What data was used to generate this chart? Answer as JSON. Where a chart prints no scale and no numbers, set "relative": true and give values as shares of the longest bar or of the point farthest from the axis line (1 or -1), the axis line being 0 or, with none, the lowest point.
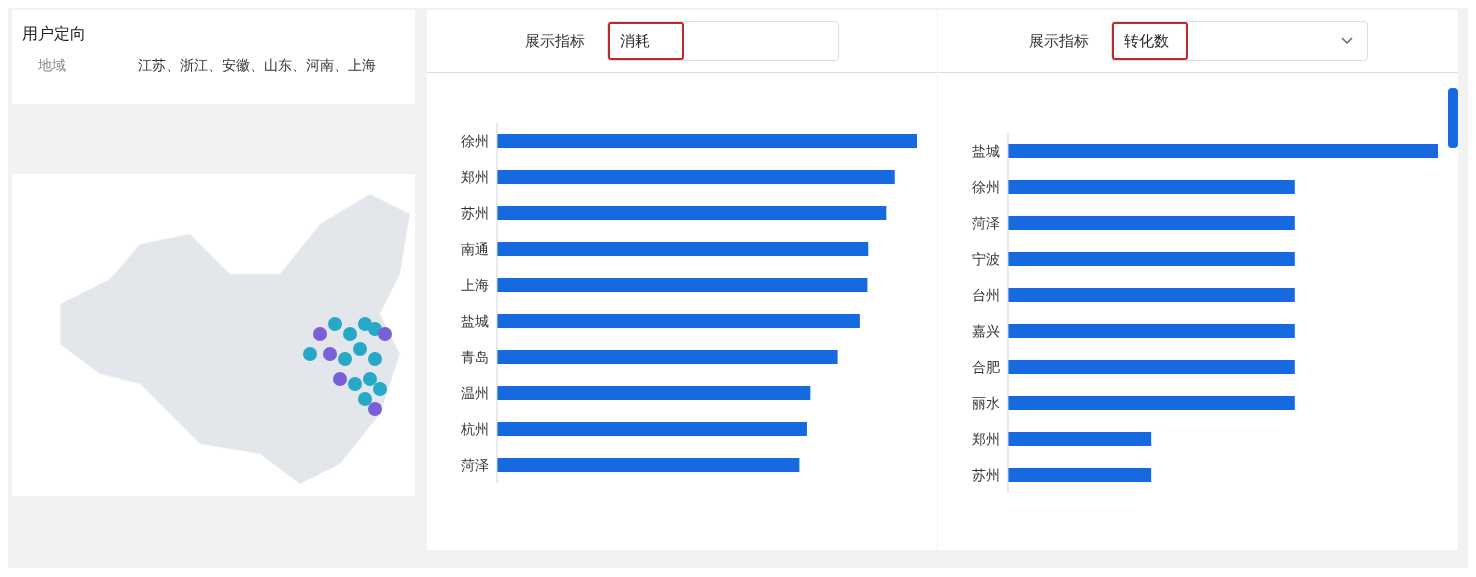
{
  "chart_data": [
    {
      "type": "other",
      "title": "用户定向",
      "annotations": [
        "地域",
        "江苏、浙江、安徽、山东、河南、上海"
      ]
    },
    {
      "type": "bar",
      "orientation": "horizontal",
      "relative": true,
      "title": "展示指标",
      "subtitle": "消耗",
      "categories": [
        "徐州",
        "郑州",
        "苏州",
        "南通",
        "上海",
        "盐城",
        "青岛",
        "温州",
        "杭州",
        "菏泽"
      ],
      "values": [
        1,
        0.947,
        0.927,
        0.884,
        0.882,
        0.864,
        0.811,
        0.746,
        0.738,
        0.72
      ],
      "color": "#1769e0"
    },
    {
      "type": "bar",
      "orientation": "horizontal",
      "relative": true,
      "title": "展示指标",
      "subtitle": "转化数",
      "categories": [
        "盐城",
        "徐州",
        "菏泽",
        "宁波",
        "台州",
        "嘉兴",
        "合肥",
        "丽水",
        "郑州",
        "苏州"
      ],
      "values": [
        1,
        0.667,
        0.667,
        0.667,
        0.667,
        0.667,
        0.667,
        0.667,
        0.333,
        0.333
      ],
      "color": "#1769e0"
    }
  ]
}
